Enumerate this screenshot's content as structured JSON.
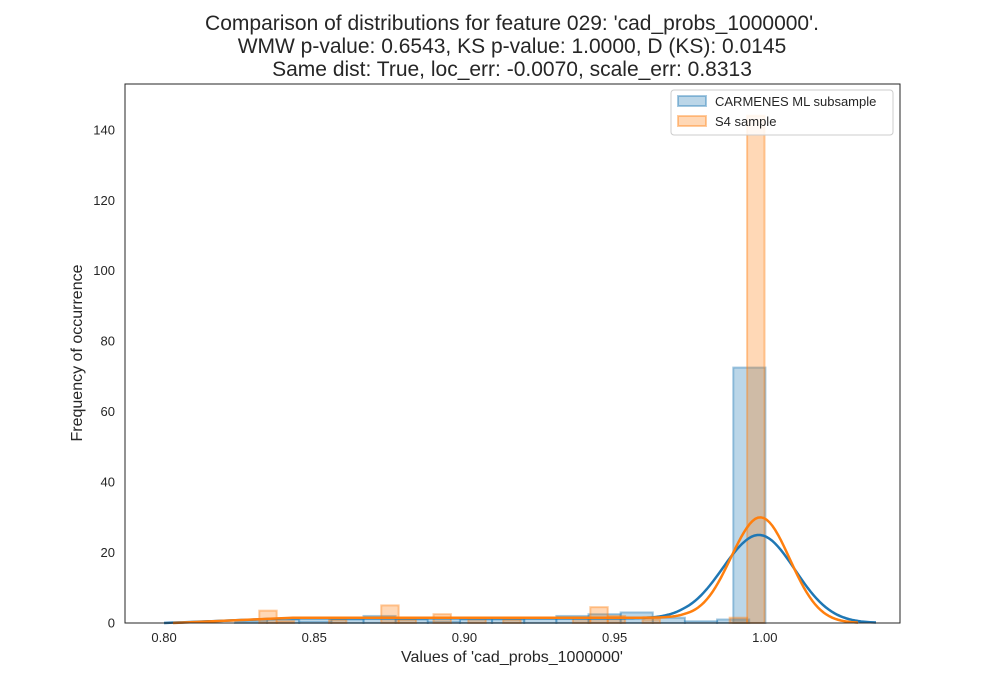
{
  "chart_data": {
    "type": "histogram",
    "title_lines": [
      "Comparison of distributions for feature 029: 'cad_probs_1000000'.",
      "WMW p-value: 0.6543, KS p-value: 1.0000, D (KS): 0.0145",
      "Same dist: True, loc_err: -0.0070, scale_err: 0.8313"
    ],
    "xlabel": "Values of 'cad_probs_1000000'",
    "ylabel": "Frequency of occurrence",
    "xlim": [
      0.787,
      1.045
    ],
    "ylim": [
      0,
      153
    ],
    "xticks": [
      0.8,
      0.85,
      0.9,
      0.95,
      1.0
    ],
    "xtick_labels": [
      "0.80",
      "0.85",
      "0.90",
      "0.95",
      "1.00"
    ],
    "yticks": [
      0,
      20,
      40,
      60,
      80,
      100,
      120,
      140
    ],
    "ytick_labels": [
      "0",
      "20",
      "40",
      "60",
      "80",
      "100",
      "120",
      "140"
    ],
    "grid": false,
    "legend_position": "top-right",
    "series": [
      {
        "name": "CARMENES ML subsample",
        "color": "#1f77b4",
        "bin_width": 0.0107,
        "bins": [
          {
            "x": 0.8236,
            "count": 0.5
          },
          {
            "x": 0.8343,
            "count": 1
          },
          {
            "x": 0.845,
            "count": 0.5
          },
          {
            "x": 0.8557,
            "count": 1
          },
          {
            "x": 0.8664,
            "count": 2
          },
          {
            "x": 0.8771,
            "count": 1
          },
          {
            "x": 0.8878,
            "count": 0.5
          },
          {
            "x": 0.8985,
            "count": 1
          },
          {
            "x": 0.9092,
            "count": 1
          },
          {
            "x": 0.9199,
            "count": 1.5
          },
          {
            "x": 0.9306,
            "count": 2
          },
          {
            "x": 0.9413,
            "count": 2.5
          },
          {
            "x": 0.952,
            "count": 3
          },
          {
            "x": 0.9627,
            "count": 1.5
          },
          {
            "x": 0.9734,
            "count": 0.5
          },
          {
            "x": 0.9841,
            "count": 1
          },
          {
            "x": 0.9895,
            "count": 72.5
          }
        ],
        "kde": {
          "amplitude": 25,
          "mu": 0.998,
          "sigma": 0.012,
          "tail_level": 1.3,
          "tail_start": 0.8,
          "x_end": 1.037
        }
      },
      {
        "name": "S4 sample",
        "color": "#ff7f0e",
        "bin_width": 0.0058,
        "bins": [
          {
            "x": 0.8317,
            "count": 3.5
          },
          {
            "x": 0.8375,
            "count": 0.5
          },
          {
            "x": 0.8549,
            "count": 1
          },
          {
            "x": 0.8723,
            "count": 5
          },
          {
            "x": 0.8781,
            "count": 1
          },
          {
            "x": 0.8897,
            "count": 2.5
          },
          {
            "x": 0.9013,
            "count": 1.5
          },
          {
            "x": 0.9129,
            "count": 1
          },
          {
            "x": 0.9361,
            "count": 1.5
          },
          {
            "x": 0.9419,
            "count": 4.5
          },
          {
            "x": 0.9477,
            "count": 2
          },
          {
            "x": 0.9593,
            "count": 1
          },
          {
            "x": 0.9883,
            "count": 1.5
          },
          {
            "x": 0.9941,
            "count": 144
          }
        ],
        "kde": {
          "amplitude": 30,
          "mu": 0.9985,
          "sigma": 0.0098,
          "tail_level": 1.5,
          "tail_start": 0.803,
          "x_end": 1.031
        }
      }
    ]
  }
}
